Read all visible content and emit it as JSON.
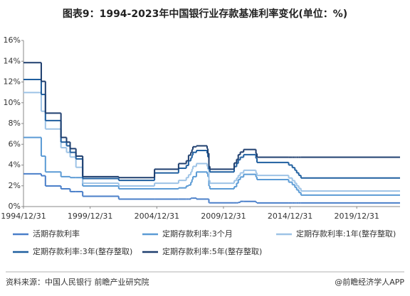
{
  "chart_data": {
    "type": "step-line",
    "title": "图表9：1994-2023年中国银行业存款基准利率变化(单位：%)",
    "x": [
      "1994/12/31",
      "1996/05/01",
      "1996/08/23",
      "1997/10/23",
      "1998/03/25",
      "1998/07/01",
      "1998/12/07",
      "1999/06/10",
      "2002/02/21",
      "2004/10/29",
      "2006/08/19",
      "2007/03/18",
      "2007/05/19",
      "2007/07/21",
      "2007/08/22",
      "2007/09/15",
      "2007/12/21",
      "2008/10/09",
      "2008/10/30",
      "2008/11/27",
      "2008/12/23",
      "2010/10/20",
      "2010/12/26",
      "2011/02/09",
      "2011/04/06",
      "2011/07/07",
      "2012/06/08",
      "2012/07/06",
      "2014/11/22",
      "2015/03/01",
      "2015/05/11",
      "2015/06/28",
      "2015/08/26",
      "2015/10/24",
      "2023/03/31"
    ],
    "series": [
      {
        "name": "活期存款利率",
        "color": "#4a7fc9",
        "values": [
          3.15,
          2.97,
          1.98,
          1.71,
          1.71,
          1.44,
          1.44,
          0.99,
          0.72,
          0.72,
          0.72,
          0.72,
          0.72,
          0.81,
          0.81,
          0.81,
          0.72,
          0.72,
          0.72,
          0.36,
          0.36,
          0.36,
          0.36,
          0.4,
          0.5,
          0.5,
          0.4,
          0.35,
          0.35,
          0.35,
          0.35,
          0.35,
          0.35,
          0.35,
          0.35
        ]
      },
      {
        "name": "定期存款利率:3个月",
        "color": "#5b9bd5",
        "values": [
          6.66,
          4.86,
          3.33,
          2.88,
          2.88,
          2.79,
          2.79,
          1.98,
          1.71,
          1.71,
          1.8,
          1.98,
          2.07,
          2.34,
          2.61,
          2.88,
          3.33,
          3.15,
          2.88,
          1.98,
          1.71,
          1.91,
          2.25,
          2.6,
          2.85,
          3.1,
          2.85,
          2.6,
          2.35,
          2.1,
          1.85,
          1.6,
          1.35,
          1.1,
          1.1
        ]
      },
      {
        "name": "定期存款利率:1年(整存整取)",
        "color": "#9dc3e6",
        "values": [
          10.98,
          9.18,
          7.47,
          5.67,
          5.22,
          4.77,
          3.78,
          2.25,
          1.98,
          2.25,
          2.52,
          2.79,
          3.06,
          3.33,
          3.6,
          3.87,
          4.14,
          3.87,
          3.6,
          2.52,
          2.25,
          2.5,
          2.75,
          3.0,
          3.25,
          3.5,
          3.25,
          3.0,
          2.75,
          2.5,
          2.25,
          2.0,
          1.75,
          1.5,
          1.5
        ]
      },
      {
        "name": "定期存款利率:3年(整存整取)",
        "color": "#1f5f9f",
        "values": [
          12.24,
          10.8,
          8.28,
          6.21,
          5.85,
          5.22,
          4.59,
          2.7,
          2.52,
          3.24,
          3.69,
          3.96,
          4.41,
          4.68,
          4.95,
          5.22,
          5.4,
          5.13,
          4.77,
          3.6,
          3.33,
          3.85,
          4.15,
          4.5,
          4.75,
          5.0,
          4.65,
          4.25,
          4.0,
          3.75,
          3.5,
          3.25,
          3.0,
          2.75,
          2.75
        ]
      },
      {
        "name": "定期存款利率:5年(整存整取)",
        "color": "#1f3f6f",
        "values": [
          13.86,
          12.06,
          9.0,
          6.66,
          6.21,
          5.58,
          4.86,
          2.88,
          2.79,
          3.6,
          4.14,
          4.41,
          4.95,
          5.22,
          5.49,
          5.76,
          5.85,
          5.58,
          5.13,
          3.87,
          3.6,
          4.2,
          4.55,
          5.0,
          5.25,
          5.5,
          5.1,
          4.75,
          4.75,
          4.75,
          4.75,
          4.75,
          4.75,
          4.75,
          4.75
        ]
      }
    ],
    "xlim": [
      "1994/12/31",
      "2023/03/31"
    ],
    "xticks": [
      "1994/12/31",
      "1999/12/31",
      "2004/12/31",
      "2009/12/31",
      "2014/12/31",
      "2019/12/31"
    ],
    "ylim": [
      0,
      16
    ],
    "yticks": [
      {
        "value": 0,
        "label": "0%"
      },
      {
        "value": 2,
        "label": "2%"
      },
      {
        "value": 4,
        "label": "4%"
      },
      {
        "value": 6,
        "label": "6%"
      },
      {
        "value": 8,
        "label": "8%"
      },
      {
        "value": 10,
        "label": "10%"
      },
      {
        "value": 12,
        "label": "12%"
      },
      {
        "value": 14,
        "label": "14%"
      },
      {
        "value": 16,
        "label": "16%"
      }
    ],
    "grid": false,
    "source": "资料来源：中国人民银行 前瞻产业研究院",
    "credit": "@前瞻经济学人APP"
  }
}
